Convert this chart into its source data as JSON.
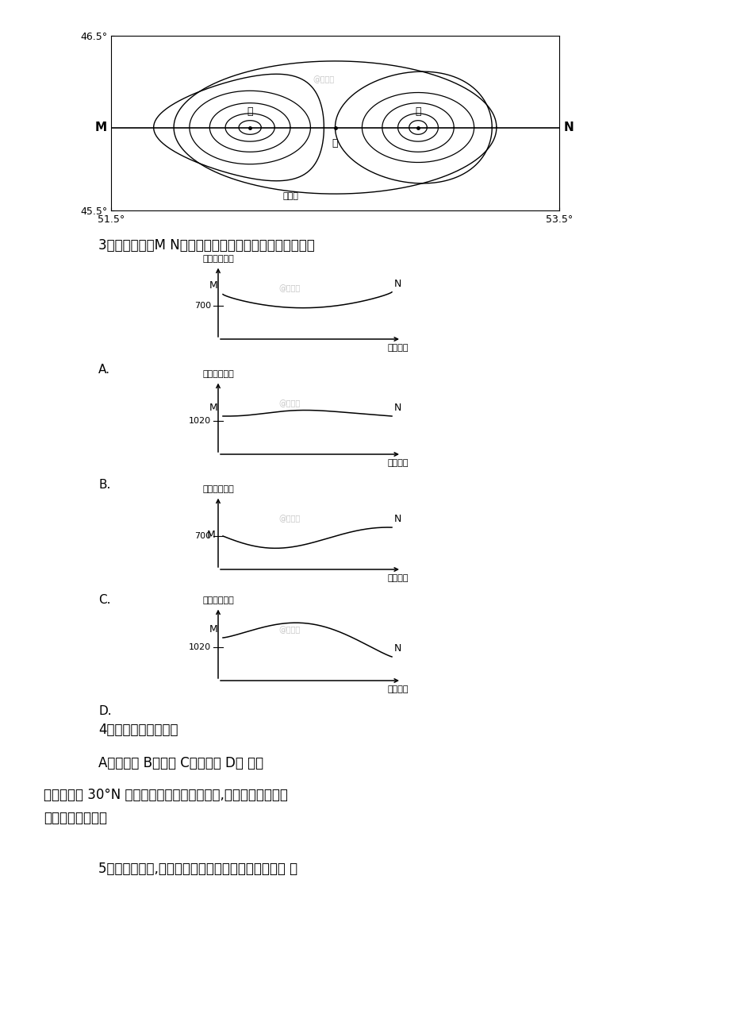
{
  "bg_color": "#ffffff",
  "top_map": {
    "xlim": [
      51.5,
      53.5
    ],
    "ylim": [
      45.5,
      46.5
    ],
    "tick_left": "51.5°",
    "tick_right": "53.5°",
    "tick_top": "46.5°",
    "tick_bottom": "45.5°",
    "label_M": "M",
    "label_N": "N",
    "label_jia": "甲",
    "label_yi": "乙",
    "label_bing": "丙",
    "label_dengaoxian": "等高线",
    "watermark": "@正确云"
  },
  "q3_text": "3．最能反映沿M N线对应剑面的近地面气压分布状况的是",
  "q4_text": "4．此时乙点的风向为",
  "q4_options": "A．东南风 B．南风 C．西北风 D． 北风",
  "q5_intro": "下图是我国 30°N 地区年太阳辐射总量分布图,读图并根据所学知\n识回答下列小题。",
  "q5_text": "5．下列四地中,年太阳辐射总量差异最大的两地是（ ）",
  "charts": [
    {
      "label": "A.",
      "ylabel_val": "700",
      "ylabel_label": "气压（百帕）",
      "xlabel_label": "水平距高",
      "M_label": "M",
      "N_label": "N",
      "curve_type": "A",
      "watermark": "@正确云"
    },
    {
      "label": "B.",
      "ylabel_val": "1020",
      "ylabel_label": "气压（百帕）",
      "xlabel_label": "水平距高",
      "M_label": "M",
      "N_label": "N",
      "curve_type": "B",
      "watermark": "@正确云"
    },
    {
      "label": "C.",
      "ylabel_val": "700",
      "ylabel_label": "气压（百帕）",
      "xlabel_label": "水平距高",
      "M_label": "M",
      "N_label": "N",
      "curve_type": "C",
      "watermark": "@正确云"
    },
    {
      "label": "D.",
      "ylabel_val": "1020",
      "ylabel_label": "气压（百帕）",
      "xlabel_label": "水平距离",
      "M_label": "M",
      "N_label": "N",
      "curve_type": "D",
      "watermark": "@正确云"
    }
  ]
}
